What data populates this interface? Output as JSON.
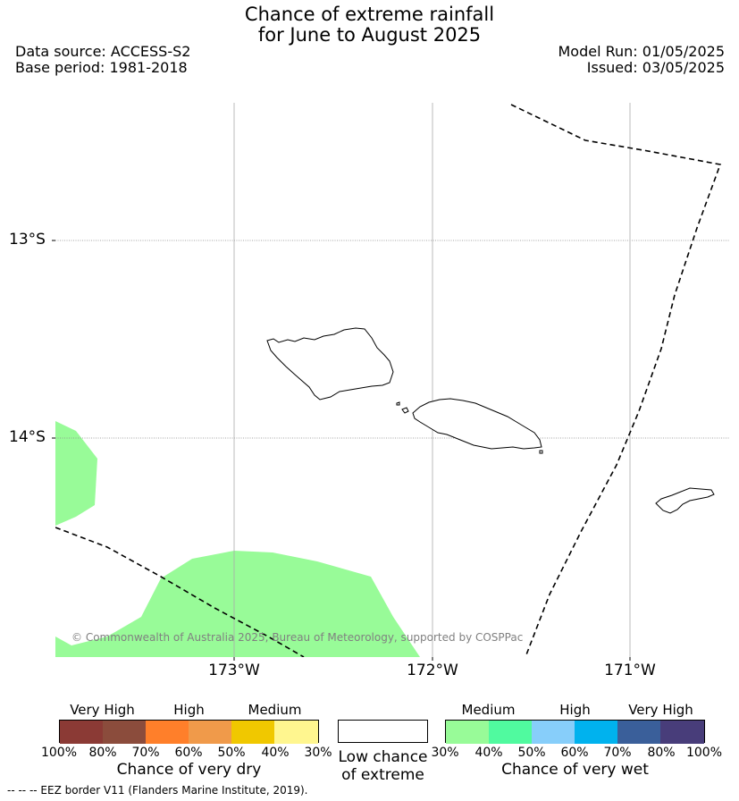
{
  "title_line1": "Chance of extreme rainfall",
  "title_line2": "for June to August 2025",
  "data_source": "Data source: ACCESS-S2",
  "base_period": "Base period: 1981-2018",
  "model_run": "Model Run: 01/05/2025",
  "issued": "Issued: 03/05/2025",
  "map": {
    "lat_labels": [
      "13°S",
      "14°S"
    ],
    "lon_labels": [
      "173°W",
      "172°W",
      "171°W"
    ],
    "copyright": "© Commonwealth of Australia 2025, Bureau of Meteorology, supported by COSPPac",
    "colors": {
      "wet_medium": "#98fb98",
      "eez_line": "#000000",
      "gridline": "#888888"
    }
  },
  "legend": {
    "dry": {
      "categories": [
        "Very High",
        "High",
        "Medium"
      ],
      "ticks": [
        "100%",
        "80%",
        "70%",
        "60%",
        "50%",
        "40%",
        "30%"
      ],
      "colors": [
        "#8b3a35",
        "#8b4c3c",
        "#ff7f2a",
        "#f09a4a",
        "#f0c800",
        "#fff68f"
      ],
      "caption": "Chance of very dry"
    },
    "low": {
      "caption_line1": "Low chance",
      "caption_line2": "of extreme"
    },
    "wet": {
      "categories": [
        "Medium",
        "High",
        "Very High"
      ],
      "ticks": [
        "30%",
        "40%",
        "50%",
        "60%",
        "70%",
        "80%",
        "100%"
      ],
      "colors": [
        "#98fb98",
        "#50fa9f",
        "#87cefa",
        "#00b2ee",
        "#3a5f9a",
        "#483d7a"
      ],
      "caption": "Chance of very wet"
    }
  },
  "footer": "-- -- -- EEZ border V11 (Flanders Marine Institute, 2019)."
}
